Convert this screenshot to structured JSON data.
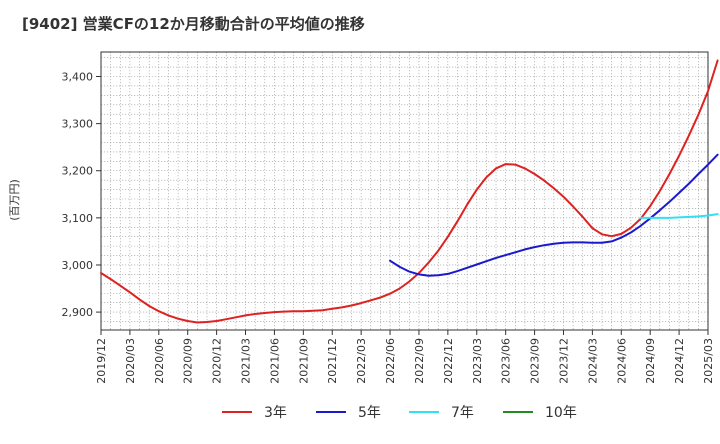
{
  "chart_data": {
    "type": "line",
    "title": "[9402]  営業CFの12か月移動合計の平均値の推移",
    "xlabel": "",
    "ylabel": "(百万円)",
    "x_ticks": [
      "2019/12",
      "2020/03",
      "2020/06",
      "2020/09",
      "2020/12",
      "2021/03",
      "2021/06",
      "2021/09",
      "2021/12",
      "2022/03",
      "2022/06",
      "2022/09",
      "2022/12",
      "2023/03",
      "2023/06",
      "2023/09",
      "2023/12",
      "2024/03",
      "2024/06",
      "2024/09",
      "2024/12",
      "2025/03"
    ],
    "y_ticks": [
      2900,
      3000,
      3100,
      3200,
      3300,
      3400
    ],
    "y_tick_labels": [
      "2,900",
      "3,000",
      "3,100",
      "3,200",
      "3,300",
      "3,400"
    ],
    "ylim": [
      2862,
      3452
    ],
    "grid": true,
    "legend_position": "bottom",
    "series": [
      {
        "name": "3年",
        "color": "#dd2222",
        "points": [
          [
            "2019/12",
            2983
          ],
          [
            "2020/01",
            2970
          ],
          [
            "2020/02",
            2956
          ],
          [
            "2020/03",
            2942
          ],
          [
            "2020/04",
            2927
          ],
          [
            "2020/05",
            2913
          ],
          [
            "2020/06",
            2902
          ],
          [
            "2020/07",
            2893
          ],
          [
            "2020/08",
            2886
          ],
          [
            "2020/09",
            2881
          ],
          [
            "2020/10",
            2878
          ],
          [
            "2020/11",
            2879
          ],
          [
            "2020/12",
            2881
          ],
          [
            "2021/01",
            2885
          ],
          [
            "2021/02",
            2889
          ],
          [
            "2021/03",
            2893
          ],
          [
            "2021/04",
            2896
          ],
          [
            "2021/05",
            2898
          ],
          [
            "2021/06",
            2900
          ],
          [
            "2021/07",
            2901
          ],
          [
            "2021/08",
            2902
          ],
          [
            "2021/09",
            2902
          ],
          [
            "2021/10",
            2903
          ],
          [
            "2021/11",
            2904
          ],
          [
            "2021/12",
            2907
          ],
          [
            "2022/01",
            2910
          ],
          [
            "2022/02",
            2914
          ],
          [
            "2022/03",
            2919
          ],
          [
            "2022/04",
            2925
          ],
          [
            "2022/05",
            2931
          ],
          [
            "2022/06",
            2939
          ],
          [
            "2022/07",
            2950
          ],
          [
            "2022/08",
            2965
          ],
          [
            "2022/09",
            2983
          ],
          [
            "2022/10",
            3005
          ],
          [
            "2022/11",
            3030
          ],
          [
            "2022/12",
            3060
          ],
          [
            "2023/01",
            3093
          ],
          [
            "2023/02",
            3128
          ],
          [
            "2023/03",
            3160
          ],
          [
            "2023/04",
            3186
          ],
          [
            "2023/05",
            3205
          ],
          [
            "2023/06",
            3214
          ],
          [
            "2023/07",
            3213
          ],
          [
            "2023/08",
            3205
          ],
          [
            "2023/09",
            3193
          ],
          [
            "2023/10",
            3179
          ],
          [
            "2023/11",
            3163
          ],
          [
            "2023/12",
            3145
          ],
          [
            "2024/01",
            3124
          ],
          [
            "2024/02",
            3102
          ],
          [
            "2024/03",
            3078
          ],
          [
            "2024/04",
            3065
          ],
          [
            "2024/05",
            3061
          ],
          [
            "2024/06",
            3066
          ],
          [
            "2024/07",
            3079
          ],
          [
            "2024/08",
            3098
          ],
          [
            "2024/09",
            3125
          ],
          [
            "2024/10",
            3157
          ],
          [
            "2024/11",
            3193
          ],
          [
            "2024/12",
            3232
          ],
          [
            "2025/01",
            3274
          ],
          [
            "2025/02",
            3319
          ],
          [
            "2025/03",
            3369
          ],
          [
            "2025/04",
            3434
          ]
        ]
      },
      {
        "name": "5年",
        "color": "#1a1acc",
        "points": [
          [
            "2022/06",
            3009
          ],
          [
            "2022/07",
            2996
          ],
          [
            "2022/08",
            2986
          ],
          [
            "2022/09",
            2980
          ],
          [
            "2022/10",
            2977
          ],
          [
            "2022/11",
            2978
          ],
          [
            "2022/12",
            2981
          ],
          [
            "2023/01",
            2987
          ],
          [
            "2023/02",
            2994
          ],
          [
            "2023/03",
            3001
          ],
          [
            "2023/04",
            3008
          ],
          [
            "2023/05",
            3015
          ],
          [
            "2023/06",
            3021
          ],
          [
            "2023/07",
            3027
          ],
          [
            "2023/08",
            3033
          ],
          [
            "2023/09",
            3038
          ],
          [
            "2023/10",
            3042
          ],
          [
            "2023/11",
            3045
          ],
          [
            "2023/12",
            3047
          ],
          [
            "2024/01",
            3048
          ],
          [
            "2024/02",
            3048
          ],
          [
            "2024/03",
            3047
          ],
          [
            "2024/04",
            3047
          ],
          [
            "2024/05",
            3050
          ],
          [
            "2024/06",
            3058
          ],
          [
            "2024/07",
            3069
          ],
          [
            "2024/08",
            3083
          ],
          [
            "2024/09",
            3099
          ],
          [
            "2024/10",
            3116
          ],
          [
            "2024/11",
            3134
          ],
          [
            "2024/12",
            3153
          ],
          [
            "2025/01",
            3172
          ],
          [
            "2025/02",
            3193
          ],
          [
            "2025/03",
            3213
          ],
          [
            "2025/04",
            3234
          ]
        ]
      },
      {
        "name": "7年",
        "color": "#33e0f0",
        "points": [
          [
            "2024/08",
            3100
          ],
          [
            "2024/09",
            3100
          ],
          [
            "2024/10",
            3100
          ],
          [
            "2024/11",
            3100
          ],
          [
            "2024/12",
            3101
          ],
          [
            "2025/01",
            3102
          ],
          [
            "2025/02",
            3103
          ],
          [
            "2025/03",
            3105
          ],
          [
            "2025/04",
            3108
          ]
        ]
      },
      {
        "name": "10年",
        "color": "#228b22",
        "points": []
      }
    ]
  }
}
